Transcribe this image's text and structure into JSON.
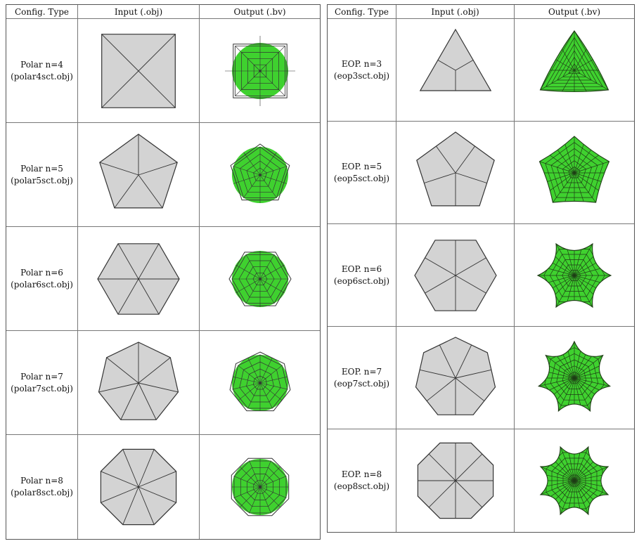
{
  "headers": {
    "config": "Config. Type",
    "input": "Input (.obj)",
    "output": "Output (.bv)"
  },
  "colors": {
    "input_fill": "#d3d3d3",
    "output_fill": "#3fd12f",
    "stroke": "#333333"
  },
  "left_table": {
    "rows": [
      {
        "type": "Polar n=4",
        "file": "(polar4sct.obj)",
        "n": 4,
        "kind": "polar"
      },
      {
        "type": "Polar n=5",
        "file": "(polar5sct.obj)",
        "n": 5,
        "kind": "polar"
      },
      {
        "type": "Polar n=6",
        "file": "(polar6sct.obj)",
        "n": 6,
        "kind": "polar"
      },
      {
        "type": "Polar n=7",
        "file": "(polar7sct.obj)",
        "n": 7,
        "kind": "polar"
      },
      {
        "type": "Polar n=8",
        "file": "(polar8sct.obj)",
        "n": 8,
        "kind": "polar"
      }
    ]
  },
  "right_table": {
    "rows": [
      {
        "type": "EOP. n=3",
        "file": "(eop3sct.obj)",
        "n": 3,
        "kind": "eop"
      },
      {
        "type": "EOP. n=5",
        "file": "(eop5sct.obj)",
        "n": 5,
        "kind": "eop"
      },
      {
        "type": "EOP. n=6",
        "file": "(eop6sct.obj)",
        "n": 6,
        "kind": "eop"
      },
      {
        "type": "EOP. n=7",
        "file": "(eop7sct.obj)",
        "n": 7,
        "kind": "eop"
      },
      {
        "type": "EOP. n=8",
        "file": "(eop8sct.obj)",
        "n": 8,
        "kind": "eop"
      }
    ]
  }
}
